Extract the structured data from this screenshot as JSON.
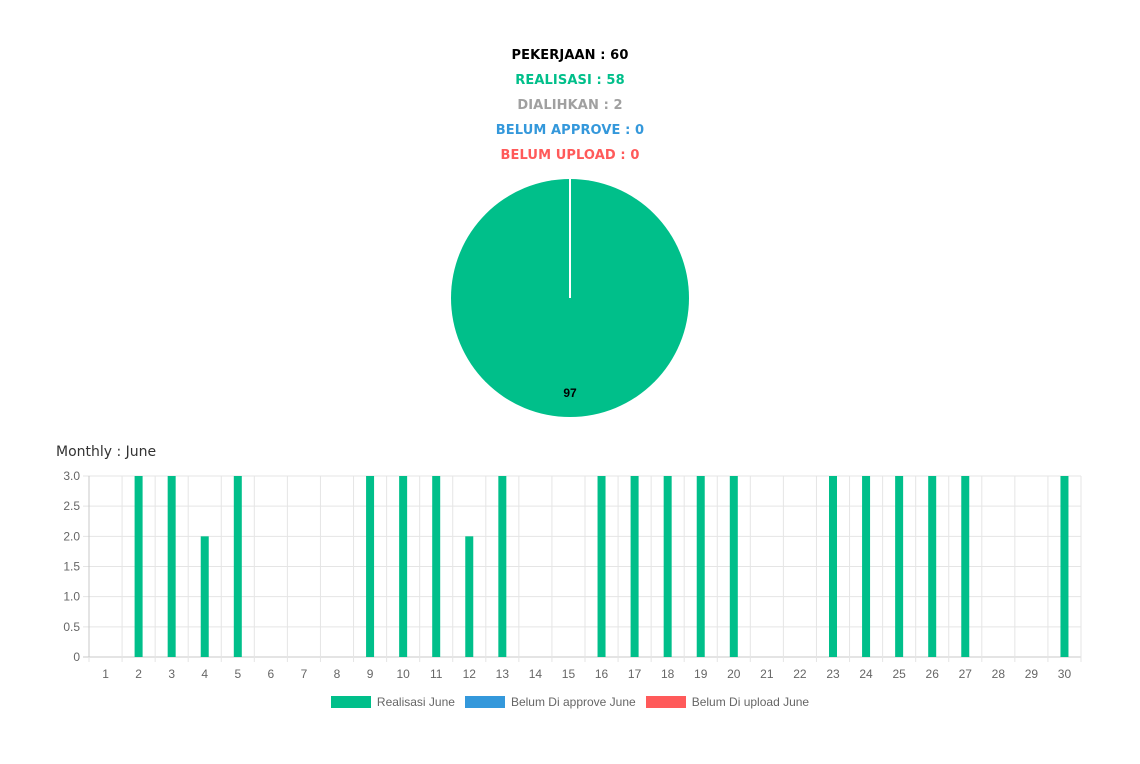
{
  "summary": {
    "pekerjaan": "PEKERJAAN : 60",
    "realisasi": "REALISASI : 58",
    "dialihkan": "DIALIHKAN : 2",
    "belum_approve": "BELUM APPROVE : 0",
    "belum_upload": "BELUM UPLOAD : 0"
  },
  "colors": {
    "pekerjaan": "#000000",
    "realisasi": "#00bf8a",
    "dialihkan": "#a0a0a0",
    "belum_approve": "#3498db",
    "belum_upload": "#ff5a5a"
  },
  "monthly_title": "Monthly : June",
  "chart_data": [
    {
      "type": "pie",
      "slices": [
        {
          "value": 97,
          "label": "97",
          "color": "#00bf8a"
        },
        {
          "value": 0,
          "label": "",
          "color": "#3498db"
        },
        {
          "value": 0,
          "label": "",
          "color": "#ff5a5a"
        }
      ]
    },
    {
      "type": "bar",
      "categories": [
        "1",
        "2",
        "3",
        "4",
        "5",
        "6",
        "7",
        "8",
        "9",
        "10",
        "11",
        "12",
        "13",
        "14",
        "15",
        "16",
        "17",
        "18",
        "19",
        "20",
        "21",
        "22",
        "23",
        "24",
        "25",
        "26",
        "27",
        "28",
        "29",
        "30"
      ],
      "series": [
        {
          "name": "Realisasi June",
          "color": "#00bf8a",
          "values": [
            0,
            3,
            3,
            2,
            3,
            0,
            0,
            0,
            3,
            3,
            3,
            2,
            3,
            0,
            0,
            3,
            3,
            3,
            3,
            3,
            0,
            0,
            3,
            3,
            3,
            3,
            3,
            0,
            0,
            3
          ]
        },
        {
          "name": "Belum Di approve June",
          "color": "#3498db",
          "values": [
            0,
            0,
            0,
            0,
            0,
            0,
            0,
            0,
            0,
            0,
            0,
            0,
            0,
            0,
            0,
            0,
            0,
            0,
            0,
            0,
            0,
            0,
            0,
            0,
            0,
            0,
            0,
            0,
            0,
            0
          ]
        },
        {
          "name": "Belum Di upload June",
          "color": "#ff5a5a",
          "values": [
            0,
            0,
            0,
            0,
            0,
            0,
            0,
            0,
            0,
            0,
            0,
            0,
            0,
            0,
            0,
            0,
            0,
            0,
            0,
            0,
            0,
            0,
            0,
            0,
            0,
            0,
            0,
            0,
            0,
            0
          ]
        }
      ],
      "ylim": [
        0,
        3
      ],
      "yticks": [
        "0",
        "0.5",
        "1.0",
        "1.5",
        "2.0",
        "2.5",
        "3.0"
      ],
      "grid": true,
      "legend": "bottom"
    }
  ]
}
